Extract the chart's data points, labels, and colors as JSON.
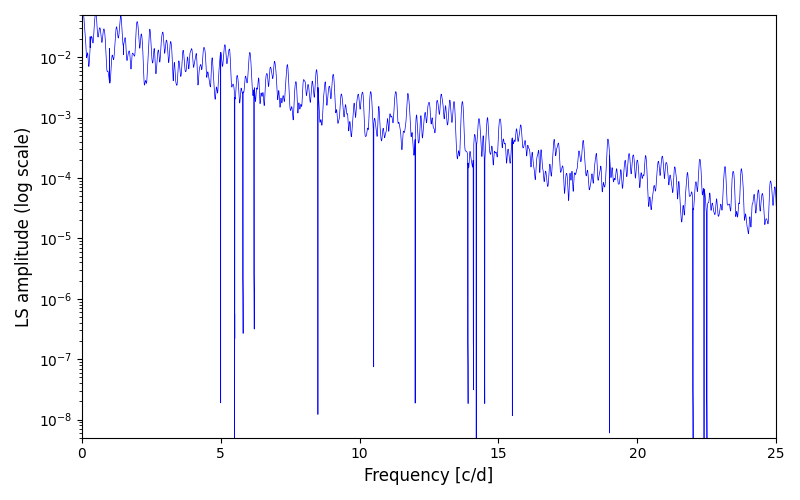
{
  "xlabel": "Frequency [c/d]",
  "ylabel": "LS amplitude (log scale)",
  "xlim": [
    0,
    25
  ],
  "ylim": [
    5e-09,
    0.05
  ],
  "line_color": "blue",
  "line_width": 0.5,
  "background_color": "#ffffff",
  "freq_min": 0.0,
  "freq_max": 25.0,
  "n_points": 10000,
  "seed": 12345
}
